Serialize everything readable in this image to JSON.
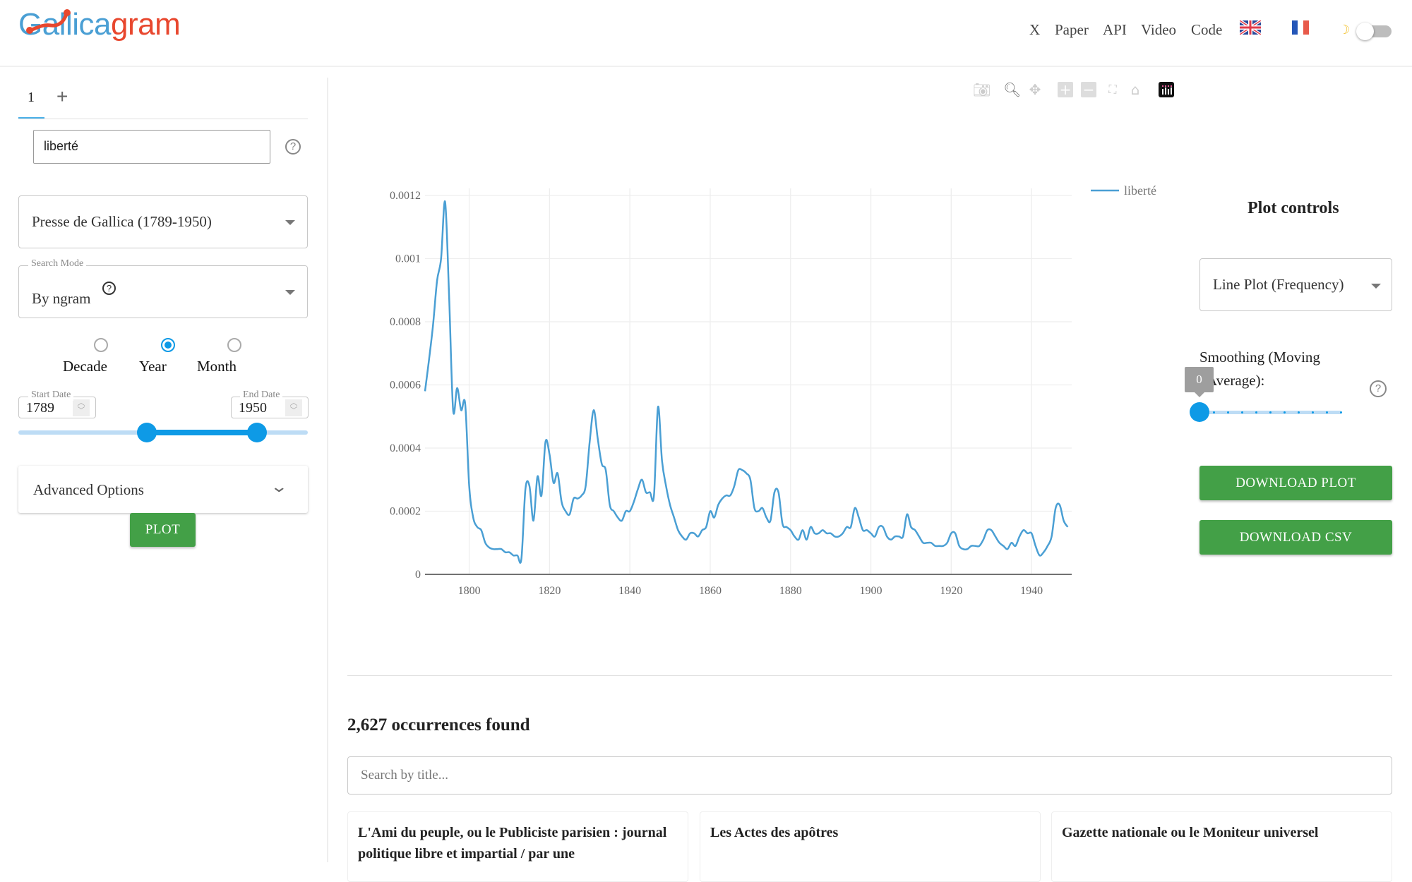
{
  "header": {
    "logo": {
      "part1": "G",
      "part2": "allica",
      "part3": "gram"
    },
    "nav": [
      "X",
      "Paper",
      "API",
      "Video",
      "Code"
    ],
    "flags": [
      "uk-flag",
      "france-flag"
    ],
    "dark_mode_icon": "moon-icon",
    "dark_mode_on": false
  },
  "sidebar": {
    "tabs": [
      {
        "label": "1",
        "active": true
      },
      {
        "label": "+"
      }
    ],
    "query_value": "liberté",
    "corpus_value": "Presse de Gallica (1789-1950)",
    "search_mode_label": "Search Mode",
    "search_mode_value": "By ngram",
    "resolution_options": [
      {
        "label": "Decade",
        "selected": false
      },
      {
        "label": "Year",
        "selected": true
      },
      {
        "label": "Month",
        "selected": false
      }
    ],
    "start_date_label": "Start Date",
    "start_date": "1789",
    "end_date_label": "End Date",
    "end_date": "1950",
    "range_min": 1789,
    "range_max": 1950,
    "advanced_label": "Advanced Options",
    "plot_label": "PLOT"
  },
  "toolbar": [
    "camera-icon",
    "zoom-icon",
    "pan-icon",
    "zoom-in-icon",
    "zoom-out-icon",
    "autoscale-icon",
    "home-icon",
    "plotly-logo-icon"
  ],
  "plot_controls": {
    "title": "Plot controls",
    "plot_type": "Line Plot (Frequency)",
    "smoothing_label_1": "Smoothing (Moving",
    "smoothing_label_2": "Average):",
    "smoothing_value": "0",
    "smoothing_max": 10,
    "download_plot": "DOWNLOAD PLOT",
    "download_csv": "DOWNLOAD CSV"
  },
  "results": {
    "count_text": "2,627 occurrences found",
    "search_placeholder": "Search by title...",
    "cards": [
      {
        "title": "L'Ami du peuple, ou le Publiciste parisien : journal politique libre et impartial / par une"
      },
      {
        "title": "Les Actes des apôtres"
      },
      {
        "title": "Gazette nationale ou le Moniteur universel"
      }
    ]
  },
  "chart_data": {
    "type": "line",
    "xlim": [
      1789,
      1950
    ],
    "ylim": [
      0,
      0.0012
    ],
    "x_ticks": [
      "1800",
      "1820",
      "1840",
      "1860",
      "1880",
      "1900",
      "1920",
      "1940"
    ],
    "y_ticks": [
      "0",
      "0.0002",
      "0.0004",
      "0.0006",
      "0.0008",
      "0.001",
      "0.0012"
    ],
    "grid": true,
    "legend_position": "top-right",
    "line_color": "#4a9fd4",
    "series": [
      {
        "name": "liberté",
        "x_start": 1789,
        "values": [
          0.00058,
          0.00068,
          0.00079,
          0.00093,
          0.001,
          0.00118,
          0.00088,
          0.00052,
          0.00059,
          0.00052,
          0.00054,
          0.00028,
          0.00018,
          0.00015,
          0.00014,
          0.0001,
          8.5e-05,
          8e-05,
          8e-05,
          8e-05,
          7e-05,
          7e-05,
          6e-05,
          6e-05,
          5e-05,
          0.00027,
          0.00028,
          0.00017,
          0.00031,
          0.00025,
          0.00042,
          0.00038,
          0.00029,
          0.00032,
          0.00023,
          0.0002,
          0.00019,
          0.00024,
          0.00024,
          0.00025,
          0.00028,
          0.00042,
          0.00052,
          0.00043,
          0.00035,
          0.00033,
          0.00022,
          0.0002,
          0.00018,
          0.00017,
          0.0002,
          0.0002,
          0.00023,
          0.00027,
          0.0003,
          0.00026,
          0.00026,
          0.00025,
          0.00053,
          0.00036,
          0.00028,
          0.00022,
          0.00018,
          0.00014,
          0.00012,
          0.00011,
          0.00013,
          0.00013,
          0.00012,
          0.00014,
          0.00015,
          0.0002,
          0.00018,
          0.00022,
          0.00024,
          0.00025,
          0.00025,
          0.00028,
          0.00033,
          0.00033,
          0.00032,
          0.0003,
          0.00021,
          0.0002,
          0.00021,
          0.00018,
          0.00017,
          0.00026,
          0.00026,
          0.00016,
          0.00015,
          0.00014,
          0.00012,
          0.00011,
          0.00014,
          0.00011,
          0.00015,
          0.00013,
          0.00013,
          0.00014,
          0.00013,
          0.00013,
          0.00012,
          0.00012,
          0.00013,
          0.00015,
          0.00015,
          0.00021,
          0.00018,
          0.00014,
          0.00014,
          0.00013,
          0.00012,
          0.00015,
          0.00015,
          0.00012,
          0.00011,
          0.00012,
          0.00012,
          0.00012,
          0.00019,
          0.00015,
          0.00014,
          0.00012,
          0.0001,
          0.0001,
          0.0001,
          9e-05,
          9e-05,
          9e-05,
          0.0001,
          0.00013,
          0.00013,
          9e-05,
          8e-05,
          8e-05,
          9e-05,
          9e-05,
          9e-05,
          0.00011,
          0.00014,
          0.00014,
          0.00012,
          0.0001,
          9e-05,
          8e-05,
          0.0001,
          9e-05,
          0.00012,
          0.00014,
          0.00013,
          0.00013,
          9e-05,
          6e-05,
          7e-05,
          9e-05,
          0.00012,
          0.00021,
          0.00022,
          0.00017,
          0.00015
        ]
      }
    ]
  }
}
